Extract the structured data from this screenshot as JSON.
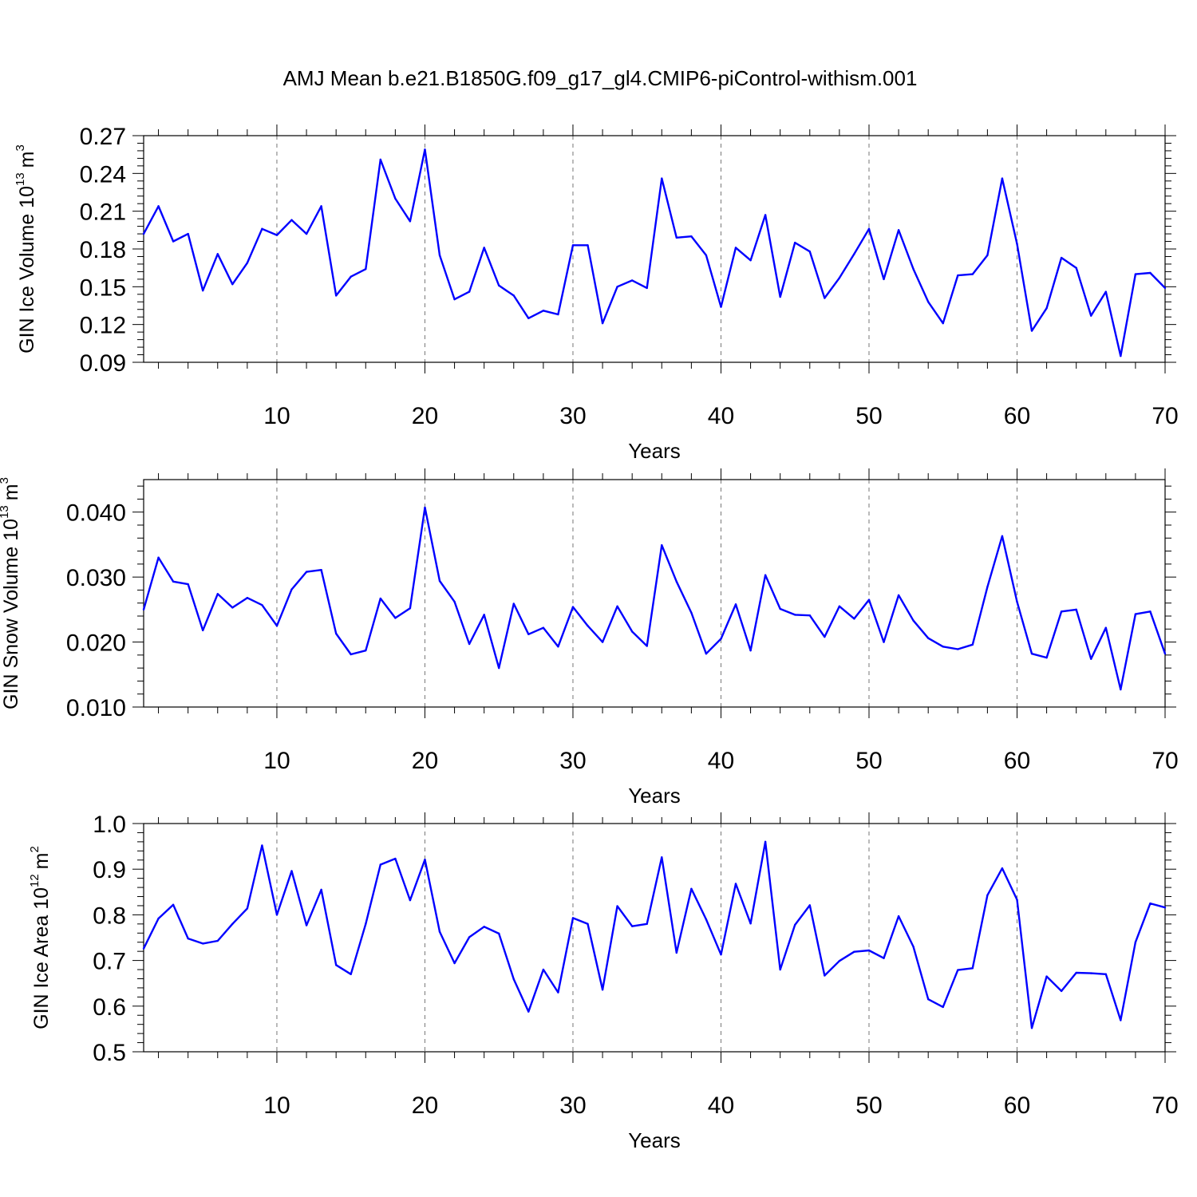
{
  "title": "AMJ Mean b.e21.B1850G.f09_g17_gl4.CMIP6-piControl-withism.001",
  "line_color": "#0000ff",
  "chart_data": [
    {
      "type": "line",
      "ylabel_main": "GIN Ice Volume 10",
      "ylabel_exp": "13",
      "ylabel_unit": "m",
      "ylabel_unit_exp": "3",
      "xlabel": "Years",
      "xlim": [
        1,
        70
      ],
      "ylim": [
        0.09,
        0.27
      ],
      "yticks": [
        "0.09",
        "0.12",
        "0.15",
        "0.18",
        "0.21",
        "0.24",
        "0.27"
      ],
      "xticks": [
        "10",
        "20",
        "30",
        "40",
        "50",
        "60",
        "70"
      ],
      "grid_x": [
        10,
        20,
        30,
        40,
        50,
        60
      ],
      "x": [
        1,
        2,
        3,
        4,
        5,
        6,
        7,
        8,
        9,
        10,
        11,
        12,
        13,
        14,
        15,
        16,
        17,
        18,
        19,
        20,
        21,
        22,
        23,
        24,
        25,
        26,
        27,
        28,
        29,
        30,
        31,
        32,
        33,
        34,
        35,
        36,
        37,
        38,
        39,
        40,
        41,
        42,
        43,
        44,
        45,
        46,
        47,
        48,
        49,
        50,
        51,
        52,
        53,
        54,
        55,
        56,
        57,
        58,
        59,
        60,
        61,
        62,
        63,
        64,
        65,
        66,
        67,
        68,
        69,
        70
      ],
      "values": [
        0.192,
        0.214,
        0.186,
        0.192,
        0.147,
        0.176,
        0.152,
        0.169,
        0.196,
        0.191,
        0.203,
        0.192,
        0.214,
        0.143,
        0.158,
        0.164,
        0.251,
        0.22,
        0.202,
        0.259,
        0.175,
        0.14,
        0.146,
        0.181,
        0.151,
        0.143,
        0.125,
        0.131,
        0.128,
        0.183,
        0.183,
        0.121,
        0.15,
        0.155,
        0.149,
        0.236,
        0.189,
        0.19,
        0.175,
        0.134,
        0.181,
        0.171,
        0.207,
        0.142,
        0.185,
        0.178,
        0.141,
        0.157,
        0.176,
        0.196,
        0.156,
        0.195,
        0.164,
        0.138,
        0.121,
        0.159,
        0.16,
        0.175,
        0.236,
        0.184,
        0.115,
        0.133,
        0.173,
        0.165,
        0.127,
        0.146,
        0.095,
        0.16,
        0.161,
        0.149
      ]
    },
    {
      "type": "line",
      "ylabel_main": "GIN Snow Volume 10",
      "ylabel_exp": "13",
      "ylabel_unit": "m",
      "ylabel_unit_exp": "3",
      "xlabel": "Years",
      "xlim": [
        1,
        70
      ],
      "ylim": [
        0.01,
        0.045
      ],
      "yticks": [
        "0.010",
        "0.020",
        "0.030",
        "0.040"
      ],
      "xticks": [
        "10",
        "20",
        "30",
        "40",
        "50",
        "60",
        "70"
      ],
      "grid_x": [
        10,
        20,
        30,
        40,
        50,
        60
      ],
      "x": [
        1,
        2,
        3,
        4,
        5,
        6,
        7,
        8,
        9,
        10,
        11,
        12,
        13,
        14,
        15,
        16,
        17,
        18,
        19,
        20,
        21,
        22,
        23,
        24,
        25,
        26,
        27,
        28,
        29,
        30,
        31,
        32,
        33,
        34,
        35,
        36,
        37,
        38,
        39,
        40,
        41,
        42,
        43,
        44,
        45,
        46,
        47,
        48,
        49,
        50,
        51,
        52,
        53,
        54,
        55,
        56,
        57,
        58,
        59,
        60,
        61,
        62,
        63,
        64,
        65,
        66,
        67,
        68,
        69,
        70
      ],
      "values": [
        0.025,
        0.033,
        0.0293,
        0.0289,
        0.0218,
        0.0274,
        0.0253,
        0.0268,
        0.0257,
        0.0225,
        0.0281,
        0.0308,
        0.0311,
        0.0213,
        0.0181,
        0.0187,
        0.0267,
        0.0237,
        0.0252,
        0.0407,
        0.0294,
        0.0262,
        0.0197,
        0.0242,
        0.016,
        0.0259,
        0.0212,
        0.0222,
        0.0193,
        0.0254,
        0.0225,
        0.02,
        0.0255,
        0.0216,
        0.0194,
        0.0349,
        0.0293,
        0.0245,
        0.0182,
        0.0205,
        0.0258,
        0.0187,
        0.0303,
        0.0251,
        0.0242,
        0.0241,
        0.0208,
        0.0255,
        0.0236,
        0.0265,
        0.02,
        0.0272,
        0.0233,
        0.0206,
        0.0193,
        0.0189,
        0.0196,
        0.0285,
        0.0363,
        0.0262,
        0.0182,
        0.0176,
        0.0247,
        0.025,
        0.0174,
        0.0222,
        0.0127,
        0.0243,
        0.0247,
        0.0182
      ]
    },
    {
      "type": "line",
      "ylabel_main": "GIN Ice Area 10",
      "ylabel_exp": "12",
      "ylabel_unit": "m",
      "ylabel_unit_exp": "2",
      "xlabel": "Years",
      "xlim": [
        1,
        70
      ],
      "ylim": [
        0.5,
        1.0
      ],
      "yticks": [
        "0.5",
        "0.6",
        "0.7",
        "0.8",
        "0.9",
        "1.0"
      ],
      "xticks": [
        "10",
        "20",
        "30",
        "40",
        "50",
        "60",
        "70"
      ],
      "grid_x": [
        10,
        20,
        30,
        40,
        50,
        60
      ],
      "x": [
        1,
        2,
        3,
        4,
        5,
        6,
        7,
        8,
        9,
        10,
        11,
        12,
        13,
        14,
        15,
        16,
        17,
        18,
        19,
        20,
        21,
        22,
        23,
        24,
        25,
        26,
        27,
        28,
        29,
        30,
        31,
        32,
        33,
        34,
        35,
        36,
        37,
        38,
        39,
        40,
        41,
        42,
        43,
        44,
        45,
        46,
        47,
        48,
        49,
        50,
        51,
        52,
        53,
        54,
        55,
        56,
        57,
        58,
        59,
        60,
        61,
        62,
        63,
        64,
        65,
        66,
        67,
        68,
        69,
        70
      ],
      "values": [
        0.726,
        0.792,
        0.822,
        0.748,
        0.737,
        0.743,
        0.78,
        0.814,
        0.952,
        0.8,
        0.896,
        0.777,
        0.855,
        0.69,
        0.67,
        0.78,
        0.91,
        0.923,
        0.832,
        0.921,
        0.763,
        0.694,
        0.751,
        0.774,
        0.759,
        0.659,
        0.588,
        0.68,
        0.63,
        0.793,
        0.78,
        0.636,
        0.819,
        0.775,
        0.78,
        0.926,
        0.717,
        0.857,
        0.79,
        0.713,
        0.868,
        0.781,
        0.96,
        0.68,
        0.778,
        0.821,
        0.667,
        0.699,
        0.719,
        0.722,
        0.705,
        0.797,
        0.73,
        0.615,
        0.598,
        0.679,
        0.683,
        0.843,
        0.902,
        0.833,
        0.552,
        0.665,
        0.633,
        0.673,
        0.672,
        0.67,
        0.569,
        0.74,
        0.825,
        0.816
      ]
    }
  ]
}
